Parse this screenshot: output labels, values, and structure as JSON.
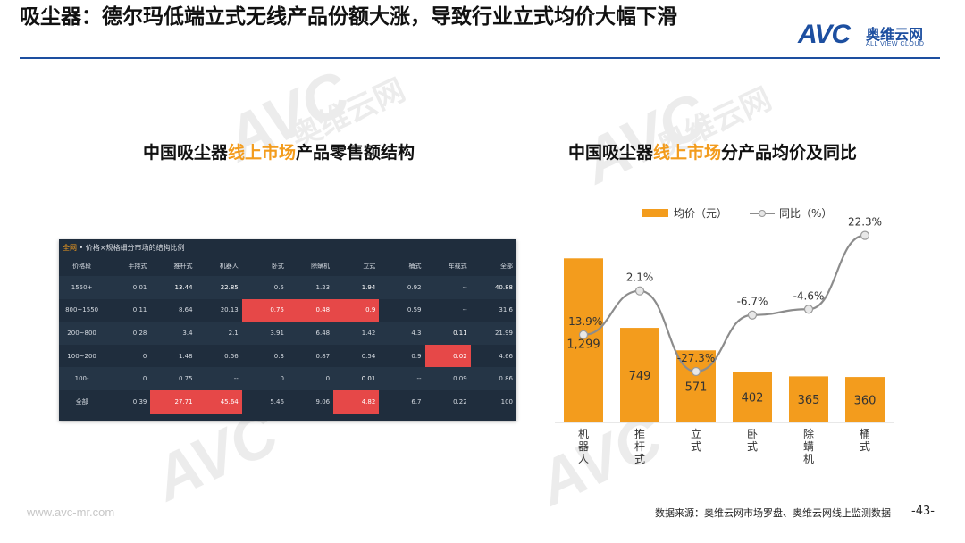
{
  "header": {
    "title": "吸尘器：德尔玛低端立式无线产品份额大涨，导致行业立式均价大幅下滑",
    "logo_text": "AVC",
    "logo_cn": "奥维云网",
    "logo_en": "ALL VIEW CLOUD"
  },
  "watermark": {
    "text": "AVC",
    "cn": "奥维云网",
    "en": "ALL VIEW CLOUD"
  },
  "left_section": {
    "title_prefix": "中国吸尘器",
    "title_highlight": "线上市场",
    "title_suffix": "产品零售额结构",
    "table_caption_all": "全网",
    "table_caption_rest": " • 价格×规格细分市场的结构比例",
    "table": {
      "headers": [
        "价格段",
        "手持式",
        "推杆式",
        "机器人",
        "卧式",
        "除螨机",
        "立式",
        "桶式",
        "车载式",
        "全部"
      ],
      "rows": [
        [
          "1550+",
          "0.01",
          "13.44",
          "22.85",
          "0.5",
          "1.23",
          "1.94",
          "0.92",
          "--",
          "40.88"
        ],
        [
          "800~1550",
          "0.11",
          "8.64",
          "20.13",
          "0.75",
          "0.48",
          "0.9",
          "0.59",
          "--",
          "31.6"
        ],
        [
          "200~800",
          "0.28",
          "3.4",
          "2.1",
          "3.91",
          "6.48",
          "1.42",
          "4.3",
          "0.11",
          "21.99"
        ],
        [
          "100~200",
          "0",
          "1.48",
          "0.56",
          "0.3",
          "0.87",
          "0.54",
          "0.9",
          "0.02",
          "4.66"
        ],
        [
          "100-",
          "0",
          "0.75",
          "--",
          "0",
          "0",
          "0.01",
          "--",
          "0.09",
          "0.86"
        ],
        [
          "全部",
          "0.39",
          "27.71",
          "45.64",
          "5.46",
          "9.06",
          "4.82",
          "6.7",
          "0.22",
          "100"
        ]
      ],
      "highlight_cells": [
        [
          0,
          2
        ],
        [
          0,
          3
        ],
        [
          0,
          6
        ],
        [
          0,
          9
        ],
        [
          1,
          4
        ],
        [
          1,
          5
        ],
        [
          1,
          6
        ],
        [
          2,
          8
        ],
        [
          3,
          8
        ],
        [
          4,
          6
        ],
        [
          5,
          2
        ],
        [
          5,
          3
        ],
        [
          5,
          6
        ]
      ],
      "highlight_color": "#e64848"
    }
  },
  "right_section": {
    "title_prefix": "中国吸尘器",
    "title_highlight": "线上市场",
    "title_suffix": "分产品均价及同比"
  },
  "chart_data": {
    "type": "bar",
    "categories": [
      "机器人",
      "推杆式",
      "立式",
      "卧式",
      "除螨机",
      "桶式"
    ],
    "series": [
      {
        "name": "均价（元）",
        "type": "bar",
        "values": [
          1299,
          749,
          571,
          402,
          365,
          360
        ],
        "color": "#f39c1d"
      },
      {
        "name": "同比（%）",
        "type": "line",
        "values": [
          -13.9,
          2.1,
          -27.3,
          -6.7,
          -4.6,
          22.3
        ],
        "color": "#8c8c8c"
      }
    ],
    "y_range": [
      0,
      1400
    ],
    "y2_range": [
      -40,
      30
    ],
    "bar_labels": [
      "1,299",
      "749",
      "571",
      "402",
      "365",
      "360"
    ],
    "line_labels": [
      "-13.9%",
      "2.1%",
      "-27.3%",
      "-6.7%",
      "-4.6%",
      "22.3%"
    ],
    "legend_position": "top-center"
  },
  "footer": {
    "website": "www.avc-mr.com",
    "source": "数据来源：奥维云网市场罗盘、奥维云网线上监测数据",
    "page": "-43-"
  },
  "colors": {
    "accent": "#f39c1d",
    "brand": "#1d4fa0",
    "table_bg": "#1f2d3d"
  }
}
